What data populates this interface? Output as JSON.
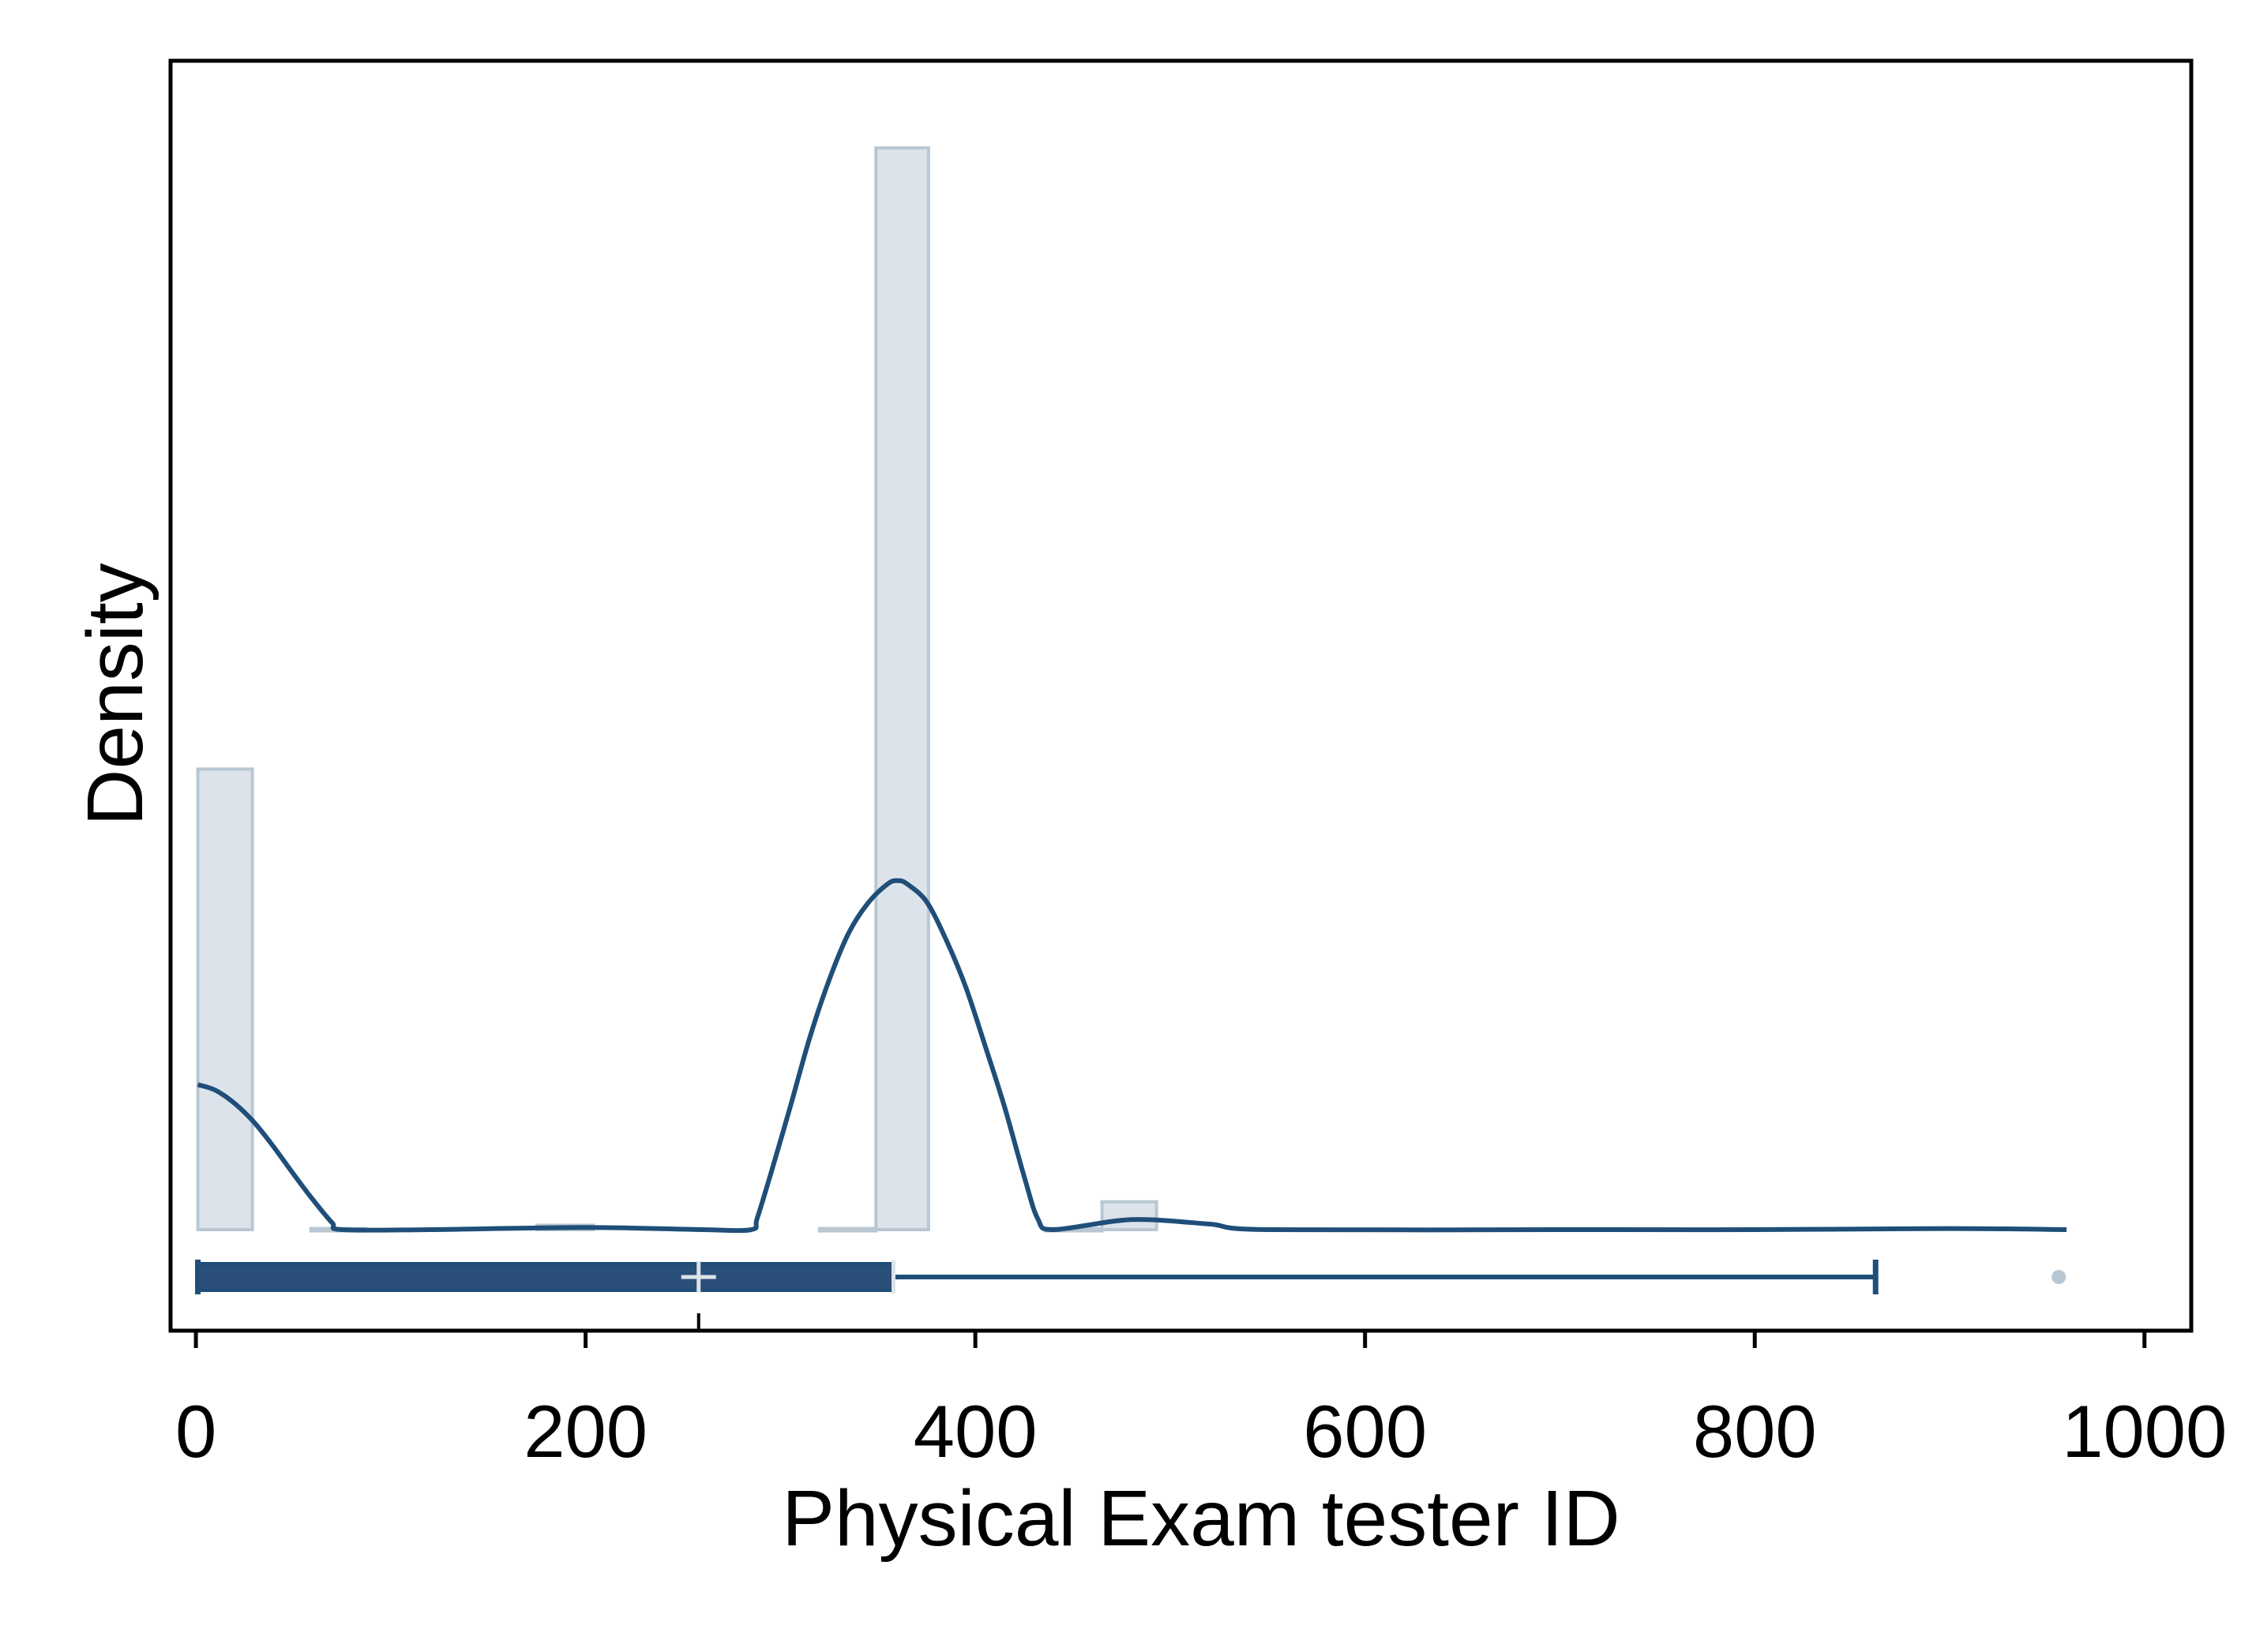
{
  "chart_data": {
    "type": "histogram",
    "title": "",
    "xlabel": "Physical Exam tester ID",
    "ylabel": "Density",
    "xlim": [
      -13,
      1024
    ],
    "ylim": [
      0,
      1.0
    ],
    "xticks": [
      0,
      200,
      400,
      600,
      800,
      1000
    ],
    "xtick_labels": [
      "0",
      "200",
      "400",
      "600",
      "800",
      "1000"
    ],
    "y_tick_labels_shown": false,
    "grid": false,
    "legend": "none",
    "colors": {
      "histogram_fill": "#dce3ea",
      "histogram_edge": "#b9c7d3",
      "density_line": "#1f4e79",
      "box_fill": "#2a4f78",
      "box_outline": "#1f4e79",
      "mean_marker": "#dce3ea",
      "outlier": "#b9c7d3",
      "axes": "#000000"
    },
    "histogram": {
      "bins": [
        {
          "x0": 1,
          "x1": 29,
          "density": 0.413
        },
        {
          "x0": 29,
          "x1": 59,
          "density": 0.0
        },
        {
          "x0": 59,
          "x1": 87,
          "density": 0.001
        },
        {
          "x0": 87,
          "x1": 175,
          "density": 0.0
        },
        {
          "x0": 175,
          "x1": 204,
          "density": 0.004
        },
        {
          "x0": 204,
          "x1": 320,
          "density": 0.0
        },
        {
          "x0": 320,
          "x1": 349,
          "density": 0.001
        },
        {
          "x0": 349,
          "x1": 376,
          "density": 0.97
        },
        {
          "x0": 376,
          "x1": 436,
          "density": 0.0
        },
        {
          "x0": 436,
          "x1": 465,
          "density": 0.001
        },
        {
          "x0": 465,
          "x1": 493,
          "density": 0.025
        }
      ]
    },
    "density_curve": {
      "x": [
        1,
        10,
        20,
        30,
        40,
        50,
        60,
        70,
        75,
        120,
        200,
        260,
        285,
        288,
        295,
        305,
        315,
        325,
        335,
        345,
        355,
        360,
        365,
        375,
        385,
        395,
        405,
        415,
        425,
        432,
        440,
        480,
        520,
        550,
        700,
        800,
        900,
        960
      ],
      "y": [
        0.13,
        0.125,
        0.113,
        0.096,
        0.074,
        0.05,
        0.027,
        0.006,
        0.0,
        0.0,
        0.002,
        0.0,
        0.0,
        0.01,
        0.05,
        0.11,
        0.172,
        0.224,
        0.266,
        0.293,
        0.31,
        0.313,
        0.31,
        0.294,
        0.26,
        0.218,
        0.165,
        0.11,
        0.048,
        0.01,
        0.0,
        0.009,
        0.005,
        0.0,
        0.0,
        0.0,
        0.001,
        0.0
      ]
    },
    "boxplot": {
      "whisker_low": 1,
      "q1": 1,
      "median": 258,
      "mean": 258,
      "q3": 358,
      "whisker_high": 862,
      "outliers": [
        956
      ]
    }
  }
}
